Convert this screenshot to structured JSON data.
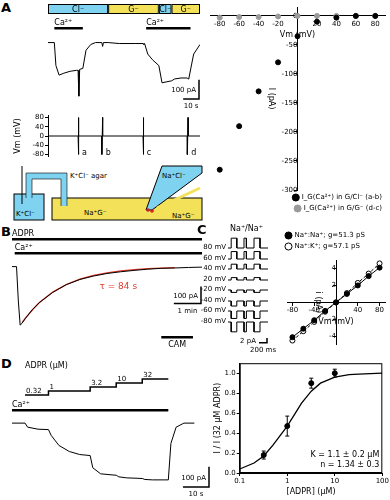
{
  "chart_data": [
    {
      "panel": "A",
      "type": "line",
      "color": "#000000",
      "x": [
        0,
        4,
        5,
        7,
        10,
        14,
        18,
        19,
        19.5,
        20,
        22,
        24,
        27,
        30,
        34,
        34.5,
        35,
        38,
        45,
        55,
        60,
        60.5,
        61,
        63,
        66,
        70,
        72,
        78,
        80,
        84,
        88,
        88.5,
        89,
        92,
        96
      ],
      "values": [
        0,
        0,
        -120,
        -170,
        -160,
        -150,
        -145,
        -145,
        -280,
        -140,
        -135,
        -40,
        -10,
        0,
        0,
        -20,
        0,
        0,
        -5,
        -5,
        -5,
        -10,
        -5,
        -60,
        -90,
        -120,
        -210,
        -200,
        -190,
        -185,
        -185,
        -190,
        -185,
        -60,
        -10
      ],
      "xlim": [
        0,
        96
      ],
      "ylim": [
        -300,
        50
      ],
      "tick_labels": false,
      "solutions": [
        {
          "label": "Cl⁻",
          "start": 0,
          "end": 38,
          "color": "#7fd3f0"
        },
        {
          "label": "G⁻",
          "start": 38,
          "end": 70,
          "color": "#f3e15a"
        },
        {
          "label": "Cl⁻",
          "start": 70,
          "end": 78,
          "color": "#7fd3f0"
        },
        {
          "label": "G⁻",
          "start": 78,
          "end": 96,
          "color": "#f3e15a"
        }
      ],
      "applications": [
        [
          {
            "label": "Ca²⁺",
            "start": 4,
            "end": 22
          },
          {
            "label": "Ca²⁺",
            "start": 62,
            "end": 90
          }
        ]
      ],
      "scale_bars": {
        "x": {
          "value": 10,
          "label": "10 s"
        },
        "y": {
          "value": 100,
          "label": "100 pA"
        }
      }
    },
    {
      "type": "line",
      "color": "#000000",
      "x": [
        0,
        19,
        19,
        19.5,
        19.5,
        34,
        34,
        34.5,
        34.5,
        60,
        60,
        60.5,
        60.5,
        88,
        88,
        88.5,
        88.5,
        96
      ],
      "values": [
        0,
        0,
        -80,
        80,
        0,
        0,
        -80,
        80,
        0,
        0,
        -80,
        80,
        0,
        0,
        -80,
        80,
        0,
        0
      ],
      "xlim": [
        0,
        96
      ],
      "ylim": [
        -90,
        90
      ],
      "yticks": [
        -80,
        -40,
        0,
        40,
        80
      ],
      "y_label": "Vm (mV)",
      "tick_labels": "y",
      "ramp_labels": [
        {
          "x": 19.5,
          "label": "a"
        },
        {
          "x": 34.5,
          "label": "b"
        },
        {
          "x": 60.5,
          "label": "c"
        },
        {
          "x": 88.5,
          "label": "d"
        }
      ]
    },
    {
      "type": "scatter",
      "x_label": "Vm (mV)",
      "y_label": "I (pA)",
      "xlim": [
        -90,
        90
      ],
      "ylim": [
        -300,
        15
      ],
      "xticks": [
        -80,
        -60,
        -40,
        -20,
        20,
        40,
        60,
        80
      ],
      "yticks": [
        -300,
        -250,
        -200,
        -150,
        -100,
        -50,
        0
      ],
      "legend": "lower right",
      "x": [
        -80,
        -60,
        -40,
        -20,
        0,
        20,
        40,
        60,
        80
      ],
      "series": [
        {
          "name": "I_G(Ca²⁺) in G/Cl⁻ (a-b)",
          "color": "#000000",
          "marker": "circle",
          "values": [
            -265,
            -190,
            -130,
            -80,
            -35,
            -10,
            -3,
            0,
            0
          ]
        },
        {
          "name": "I_G(Ca²⁺) in G/G⁻ (d-c)",
          "color": "#9a9a9a",
          "marker": "circle",
          "values": [
            -3,
            -2,
            -2,
            -1,
            0,
            0,
            0,
            0,
            0
          ]
        }
      ]
    },
    {
      "panel": "B",
      "type": "line",
      "color": "#000000",
      "x": [
        0,
        10,
        14,
        18,
        22,
        30,
        45,
        60,
        90,
        120,
        150,
        180,
        210,
        240,
        270,
        300,
        330,
        360,
        390,
        420
      ],
      "values": [
        0,
        0,
        -200,
        -340,
        -330,
        -300,
        -250,
        -210,
        -150,
        -105,
        -75,
        -55,
        -40,
        -30,
        -22,
        -15,
        -10,
        -8,
        -5,
        -3
      ],
      "xlim": [
        0,
        420
      ],
      "ylim": [
        -380,
        50
      ],
      "tick_labels": false,
      "applications": [
        [
          {
            "label": "ADPR",
            "start": 0,
            "end": 420
          }
        ],
        [
          {
            "label": "Ca²⁺",
            "start": 6,
            "end": 420
          }
        ]
      ],
      "bottom_applications": [
        {
          "label": "CAM",
          "start": 330,
          "end": 400
        }
      ],
      "fit": {
        "x": [
          22,
          30,
          45,
          60,
          90,
          120,
          150,
          180,
          210,
          240,
          270,
          300,
          330,
          360
        ],
        "values": [
          -325,
          -298,
          -252,
          -210,
          -148,
          -104,
          -73,
          -51,
          -36,
          -25,
          -18,
          -12,
          -9,
          -6
        ],
        "color": "#e03a2a",
        "label": "τ = 84 s"
      },
      "scale_bars": {
        "x": {
          "value": 60,
          "label": "1 min"
        },
        "y": {
          "value": 100,
          "label": "100 pA"
        }
      }
    },
    {
      "panel": "C",
      "type": "line",
      "title": "Na⁺/Na⁺",
      "color": "#000000",
      "x": [
        0,
        80,
        80,
        220,
        220,
        400,
        400,
        460,
        460,
        650,
        650,
        800,
        800,
        1000
      ],
      "series": [
        {
          "name": "80 mV",
          "values": [
            0,
            0,
            4.1,
            4.1,
            0,
            0,
            4.1,
            4.1,
            0,
            0,
            4.1,
            4.1,
            0,
            0
          ]
        },
        {
          "name": "60 mV",
          "values": [
            0,
            0,
            3.1,
            3.1,
            0,
            0,
            3.1,
            3.1,
            0,
            0,
            3.1,
            3.1,
            0,
            0
          ]
        },
        {
          "name": "40 mV",
          "values": [
            0,
            0,
            2.0,
            2.0,
            0,
            0,
            2.0,
            2.0,
            0,
            0,
            2.0,
            2.0,
            0,
            0
          ]
        },
        {
          "name": "20 mV",
          "values": [
            0,
            0,
            1.0,
            1.0,
            0,
            0,
            1.0,
            1.0,
            0,
            0,
            1.0,
            1.0,
            0,
            0
          ]
        },
        {
          "name": "-20 mV",
          "values": [
            0,
            0,
            -1.0,
            -1.0,
            0,
            0,
            -1.0,
            -1.0,
            0,
            0,
            -1.0,
            -1.0,
            0,
            0
          ]
        },
        {
          "name": "-40 mV",
          "values": [
            0,
            0,
            -2.1,
            -2.1,
            0,
            0,
            -2.1,
            -2.1,
            0,
            0,
            -2.1,
            -2.1,
            0,
            0
          ]
        },
        {
          "name": "-60 mV",
          "values": [
            0,
            0,
            -3.1,
            -3.1,
            0,
            0,
            -3.1,
            -3.1,
            0,
            0,
            -3.1,
            -3.1,
            0,
            0
          ]
        },
        {
          "name": "-80 mV",
          "values": [
            0,
            0,
            -4.1,
            -4.1,
            0,
            0,
            -4.1,
            -4.1,
            0,
            0,
            -4.1,
            -4.1,
            0,
            0
          ]
        }
      ],
      "xlim": [
        0,
        1000
      ],
      "ylim": [
        -5,
        5
      ],
      "tick_labels": false,
      "scale_bars": {
        "x": {
          "value": 200,
          "label": "200 ms"
        },
        "y": {
          "value": 2,
          "label": "2 pA"
        }
      }
    },
    {
      "type": "scatter",
      "x_label": "Vm (mV)",
      "y_label": "i (pA)",
      "xlim": [
        -90,
        90
      ],
      "ylim": [
        -5,
        5
      ],
      "xticks": [
        -80,
        -40,
        40,
        80
      ],
      "yticks": [
        -4,
        -2,
        2,
        4
      ],
      "legend": "upper left",
      "x": [
        -80,
        -60,
        -40,
        -20,
        0,
        20,
        40,
        60,
        80
      ],
      "series": [
        {
          "name": "Na⁺:Na⁺; g=51.3 pS",
          "color": "#000000",
          "marker": "circle",
          "line_style": "solid",
          "values": [
            -4.1,
            -3.1,
            -2.1,
            -1.0,
            0,
            1.0,
            2.0,
            3.1,
            4.1
          ]
        },
        {
          "name": "Na⁺:K⁺; g=57.1 pS",
          "color": "#000000",
          "marker": "open circle",
          "line_style": "dashed",
          "values": [
            -4.5,
            -3.4,
            -2.3,
            -1.1,
            0,
            1.1,
            2.3,
            3.4,
            4.6
          ]
        }
      ]
    },
    {
      "panel": "D",
      "type": "line",
      "color": "#000000",
      "x": [
        0,
        5,
        6,
        10,
        14,
        15,
        18,
        22,
        26,
        30,
        31,
        34,
        38,
        40,
        41,
        44,
        48,
        50,
        51,
        54,
        58,
        60,
        61,
        63,
        66,
        70
      ],
      "values": [
        0,
        0,
        -20,
        -30,
        -32,
        -60,
        -110,
        -140,
        -155,
        -160,
        -220,
        -250,
        -255,
        -257,
        -265,
        -270,
        -272,
        -273,
        -278,
        -280,
        -280,
        -280,
        -100,
        -20,
        0,
        0
      ],
      "xlim": [
        0,
        76
      ],
      "ylim": [
        -320,
        40
      ],
      "tick_labels": false,
      "steps": {
        "label": "ADPR (µM)",
        "items": [
          {
            "label": "0.32",
            "start": 5,
            "end": 14
          },
          {
            "label": "1",
            "start": 14,
            "end": 30
          },
          {
            "label": "3.2",
            "start": 30,
            "end": 40
          },
          {
            "label": "10",
            "start": 40,
            "end": 50
          },
          {
            "label": "32",
            "start": 50,
            "end": 60
          }
        ]
      },
      "applications": [
        [
          {
            "label": "Ca²⁺",
            "start": 0,
            "end": 60
          }
        ]
      ],
      "scale_bars": {
        "x": {
          "value": 10,
          "label": "10 s"
        },
        "y": {
          "value": 100,
          "label": "100 pA"
        }
      }
    },
    {
      "type": "scatter",
      "log": "x",
      "x_label": "[ADPR] (µM)",
      "y_label": "I / I (32 µM ADPR)",
      "xlim": [
        0.1,
        100
      ],
      "ylim": [
        0,
        1.1
      ],
      "xticks": [
        0.1,
        1,
        10,
        100
      ],
      "yticks": [
        {
          "value": 0,
          "label": "0.0"
        },
        0.2,
        0.4,
        0.6,
        0.8,
        {
          "value": 1,
          "label": "1.0"
        }
      ],
      "color": "#000000",
      "marker": "circle",
      "x": [
        0.32,
        1,
        3.2,
        10
      ],
      "values": [
        0.18,
        0.47,
        0.9,
        1.0
      ],
      "errors": [
        0.04,
        0.1,
        0.05,
        0.04
      ],
      "fit": {
        "x": [
          0.1,
          0.2,
          0.32,
          0.5,
          1,
          2,
          3.2,
          5,
          10,
          20,
          32,
          100
        ],
        "values": [
          0.04,
          0.1,
          0.17,
          0.28,
          0.47,
          0.7,
          0.82,
          0.9,
          0.96,
          0.985,
          0.99,
          1.0
        ],
        "color": "#000000"
      },
      "annotations": [
        "K = 1.1 ± 0.2 µM",
        "n = 1.34 ± 0.3"
      ]
    }
  ],
  "diagram": {
    "agar": "K⁺Cl⁻ agar",
    "reference": "K⁺Cl⁻",
    "bath": "Na⁺G⁻",
    "pipette": "Na⁺Cl⁻",
    "perfusion": "Na⁺G⁻"
  }
}
